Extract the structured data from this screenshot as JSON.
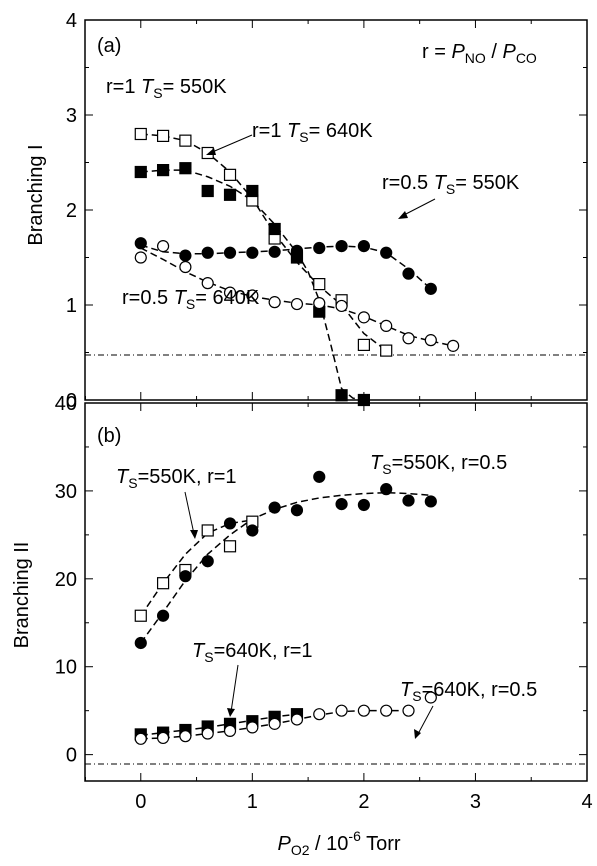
{
  "chart_data": [
    {
      "panel_label": "(a)",
      "type": "scatter",
      "ylabel": "Branching I",
      "ylim": [
        0,
        4
      ],
      "xlim": [
        -0.5,
        4
      ],
      "yticks": [
        "0",
        "1",
        "2",
        "3",
        "4"
      ],
      "zero_reference_line": true,
      "ratio_annotation": {
        "prefix": "r = ",
        "p": "P",
        "no": "NO",
        "slash": " / ",
        "co": "CO"
      },
      "series": [
        {
          "name": "r=1 TS=550K",
          "marker": "open-square",
          "x": [
            0,
            0.2,
            0.4,
            0.6,
            0.8,
            1.0,
            1.2,
            1.6,
            1.8,
            2.0,
            2.2
          ],
          "y": [
            2.8,
            2.78,
            2.73,
            2.6,
            2.37,
            2.1,
            1.7,
            1.22,
            1.05,
            0.58,
            0.52
          ],
          "fit_x": [
            0,
            0.2,
            0.4,
            0.6,
            0.8,
            1.0,
            1.2,
            1.4,
            1.6,
            1.8,
            2.0,
            2.2
          ],
          "fit_y": [
            2.8,
            2.78,
            2.73,
            2.6,
            2.4,
            2.12,
            1.75,
            1.45,
            1.2,
            1.0,
            0.7,
            0.52
          ]
        },
        {
          "name": "r=1 TS=640K",
          "marker": "filled-square",
          "x": [
            0,
            0.2,
            0.4,
            0.6,
            0.8,
            1.0,
            1.2,
            1.4,
            1.6,
            1.8,
            2.0
          ],
          "y": [
            2.4,
            2.42,
            2.44,
            2.2,
            2.16,
            2.2,
            1.8,
            1.5,
            0.93,
            0.05,
            0.0
          ],
          "fit_x": [
            0,
            0.2,
            0.4,
            0.6,
            0.8,
            1.0,
            1.2,
            1.4,
            1.5,
            1.6,
            1.7,
            1.8,
            1.9,
            2.0
          ],
          "fit_y": [
            2.4,
            2.42,
            2.42,
            2.35,
            2.25,
            2.1,
            1.85,
            1.55,
            1.35,
            1.05,
            0.6,
            0.12,
            0.02,
            0.0
          ]
        },
        {
          "name": "r=0.5 TS=550K",
          "marker": "filled-circle",
          "x": [
            0,
            0.4,
            0.6,
            0.8,
            1.0,
            1.2,
            1.4,
            1.6,
            1.8,
            2.0,
            2.2,
            2.4,
            2.6
          ],
          "y": [
            1.65,
            1.52,
            1.55,
            1.55,
            1.55,
            1.56,
            1.57,
            1.6,
            1.62,
            1.62,
            1.55,
            1.33,
            1.17
          ],
          "fit_x": [
            0,
            0.2,
            0.4,
            0.6,
            0.8,
            1.0,
            1.2,
            1.4,
            1.6,
            1.8,
            2.0,
            2.2,
            2.4,
            2.6
          ],
          "fit_y": [
            1.63,
            1.56,
            1.54,
            1.54,
            1.55,
            1.56,
            1.57,
            1.59,
            1.61,
            1.62,
            1.61,
            1.55,
            1.38,
            1.17
          ]
        },
        {
          "name": "r=0.5 TS=640K",
          "marker": "open-circle",
          "x": [
            0,
            0.2,
            0.4,
            0.6,
            0.8,
            1.0,
            1.2,
            1.4,
            1.6,
            1.8,
            2.0,
            2.2,
            2.4,
            2.6,
            2.8
          ],
          "y": [
            1.5,
            1.62,
            1.4,
            1.23,
            1.13,
            1.1,
            1.03,
            1.01,
            1.02,
            0.99,
            0.87,
            0.78,
            0.65,
            0.63,
            0.57
          ],
          "fit_x": [
            0,
            0.2,
            0.4,
            0.6,
            0.8,
            1.0,
            1.2,
            1.4,
            1.6,
            1.8,
            2.0,
            2.2,
            2.4,
            2.6,
            2.8
          ],
          "fit_y": [
            1.6,
            1.48,
            1.35,
            1.24,
            1.15,
            1.09,
            1.05,
            1.02,
            1.0,
            0.96,
            0.88,
            0.78,
            0.68,
            0.62,
            0.57
          ]
        }
      ],
      "annotations": [
        {
          "r": "r=1 ",
          "t": "T",
          "s": "S",
          "val": "= 550K"
        },
        {
          "r": "r=1 ",
          "t": "T",
          "s": "S",
          "val": "= 640K"
        },
        {
          "r": "r=0.5 ",
          "t": "T",
          "s": "S",
          "val": "= 550K"
        },
        {
          "r": "r=0.5 ",
          "t": "T",
          "s": "S",
          "val": "= 640K"
        }
      ]
    },
    {
      "panel_label": "(b)",
      "type": "scatter",
      "ylabel": "Branching II",
      "ylim": [
        -3,
        40
      ],
      "xlim": [
        -0.5,
        4
      ],
      "yticks": [
        "0",
        "10",
        "20",
        "30",
        "40"
      ],
      "xticks": [
        "0",
        "1",
        "2",
        "3",
        "4"
      ],
      "xlabel": {
        "p": "P",
        "sub": "O2",
        "mid": " / 10",
        "sup": "-6",
        "unit": " Torr"
      },
      "zero_reference_line": true,
      "series": [
        {
          "name": "TS=550K, r=1",
          "marker": "open-square",
          "x": [
            0,
            0.2,
            0.4,
            0.6,
            0.8,
            1.0
          ],
          "y": [
            15.8,
            19.5,
            21.0,
            25.5,
            23.7,
            26.5
          ],
          "fit_x": [
            0,
            0.2,
            0.4,
            0.6,
            0.8,
            1.0
          ],
          "fit_y": [
            15.8,
            19.5,
            22.8,
            25.2,
            26.3,
            26.7
          ]
        },
        {
          "name": "TS=550K, r=0.5",
          "marker": "filled-circle",
          "x": [
            0,
            0.2,
            0.4,
            0.6,
            0.8,
            1.0,
            1.2,
            1.4,
            1.6,
            1.8,
            2.0,
            2.2,
            2.4,
            2.6
          ],
          "y": [
            12.7,
            15.8,
            20.3,
            22.0,
            26.3,
            25.5,
            28.1,
            27.8,
            31.6,
            28.5,
            28.4,
            30.2,
            28.9,
            28.8
          ],
          "fit_x": [
            0,
            0.2,
            0.4,
            0.6,
            0.8,
            1.0,
            1.2,
            1.4,
            1.6,
            1.8,
            2.0,
            2.2,
            2.4,
            2.6
          ],
          "fit_y": [
            12.7,
            16.2,
            19.8,
            22.8,
            25.0,
            26.8,
            27.9,
            28.7,
            29.2,
            29.5,
            29.7,
            29.8,
            29.7,
            29.5
          ]
        },
        {
          "name": "TS=640K, r=1",
          "marker": "filled-square",
          "x": [
            0,
            0.2,
            0.4,
            0.6,
            0.8,
            1.0,
            1.2,
            1.4
          ],
          "y": [
            2.3,
            2.5,
            2.8,
            3.2,
            3.5,
            3.8,
            4.3,
            4.6
          ],
          "fit_x": [
            0,
            0.2,
            0.4,
            0.6,
            0.8,
            1.0,
            1.2,
            1.4
          ],
          "fit_y": [
            2.2,
            2.5,
            2.8,
            3.1,
            3.5,
            3.9,
            4.3,
            4.6
          ]
        },
        {
          "name": "TS=640K, r=0.5",
          "marker": "open-circle",
          "x": [
            0,
            0.2,
            0.4,
            0.6,
            0.8,
            1.0,
            1.2,
            1.4,
            1.6,
            1.8,
            2.0,
            2.2,
            2.4,
            2.6
          ],
          "y": [
            1.8,
            1.9,
            2.1,
            2.4,
            2.7,
            3.1,
            3.5,
            4.0,
            4.6,
            5.0,
            5.0,
            5.0,
            5.0,
            6.5
          ],
          "fit_x": [
            0,
            0.2,
            0.4,
            0.6,
            0.8,
            1.0,
            1.2,
            1.4,
            1.6,
            1.8,
            2.0,
            2.2,
            2.4
          ],
          "fit_y": [
            1.8,
            1.9,
            2.1,
            2.4,
            2.7,
            3.1,
            3.5,
            4.0,
            4.5,
            4.9,
            5.0,
            5.0,
            5.0
          ]
        }
      ],
      "annotations": [
        {
          "t": "T",
          "s": "S",
          "val": "=550K, r=1"
        },
        {
          "t": "T",
          "s": "S",
          "val": "=550K, r=0.5"
        },
        {
          "t": "T",
          "s": "S",
          "val": "=640K, r=1"
        },
        {
          "t": "T",
          "s": "S",
          "val": "=640K, r=0.5"
        }
      ]
    }
  ]
}
